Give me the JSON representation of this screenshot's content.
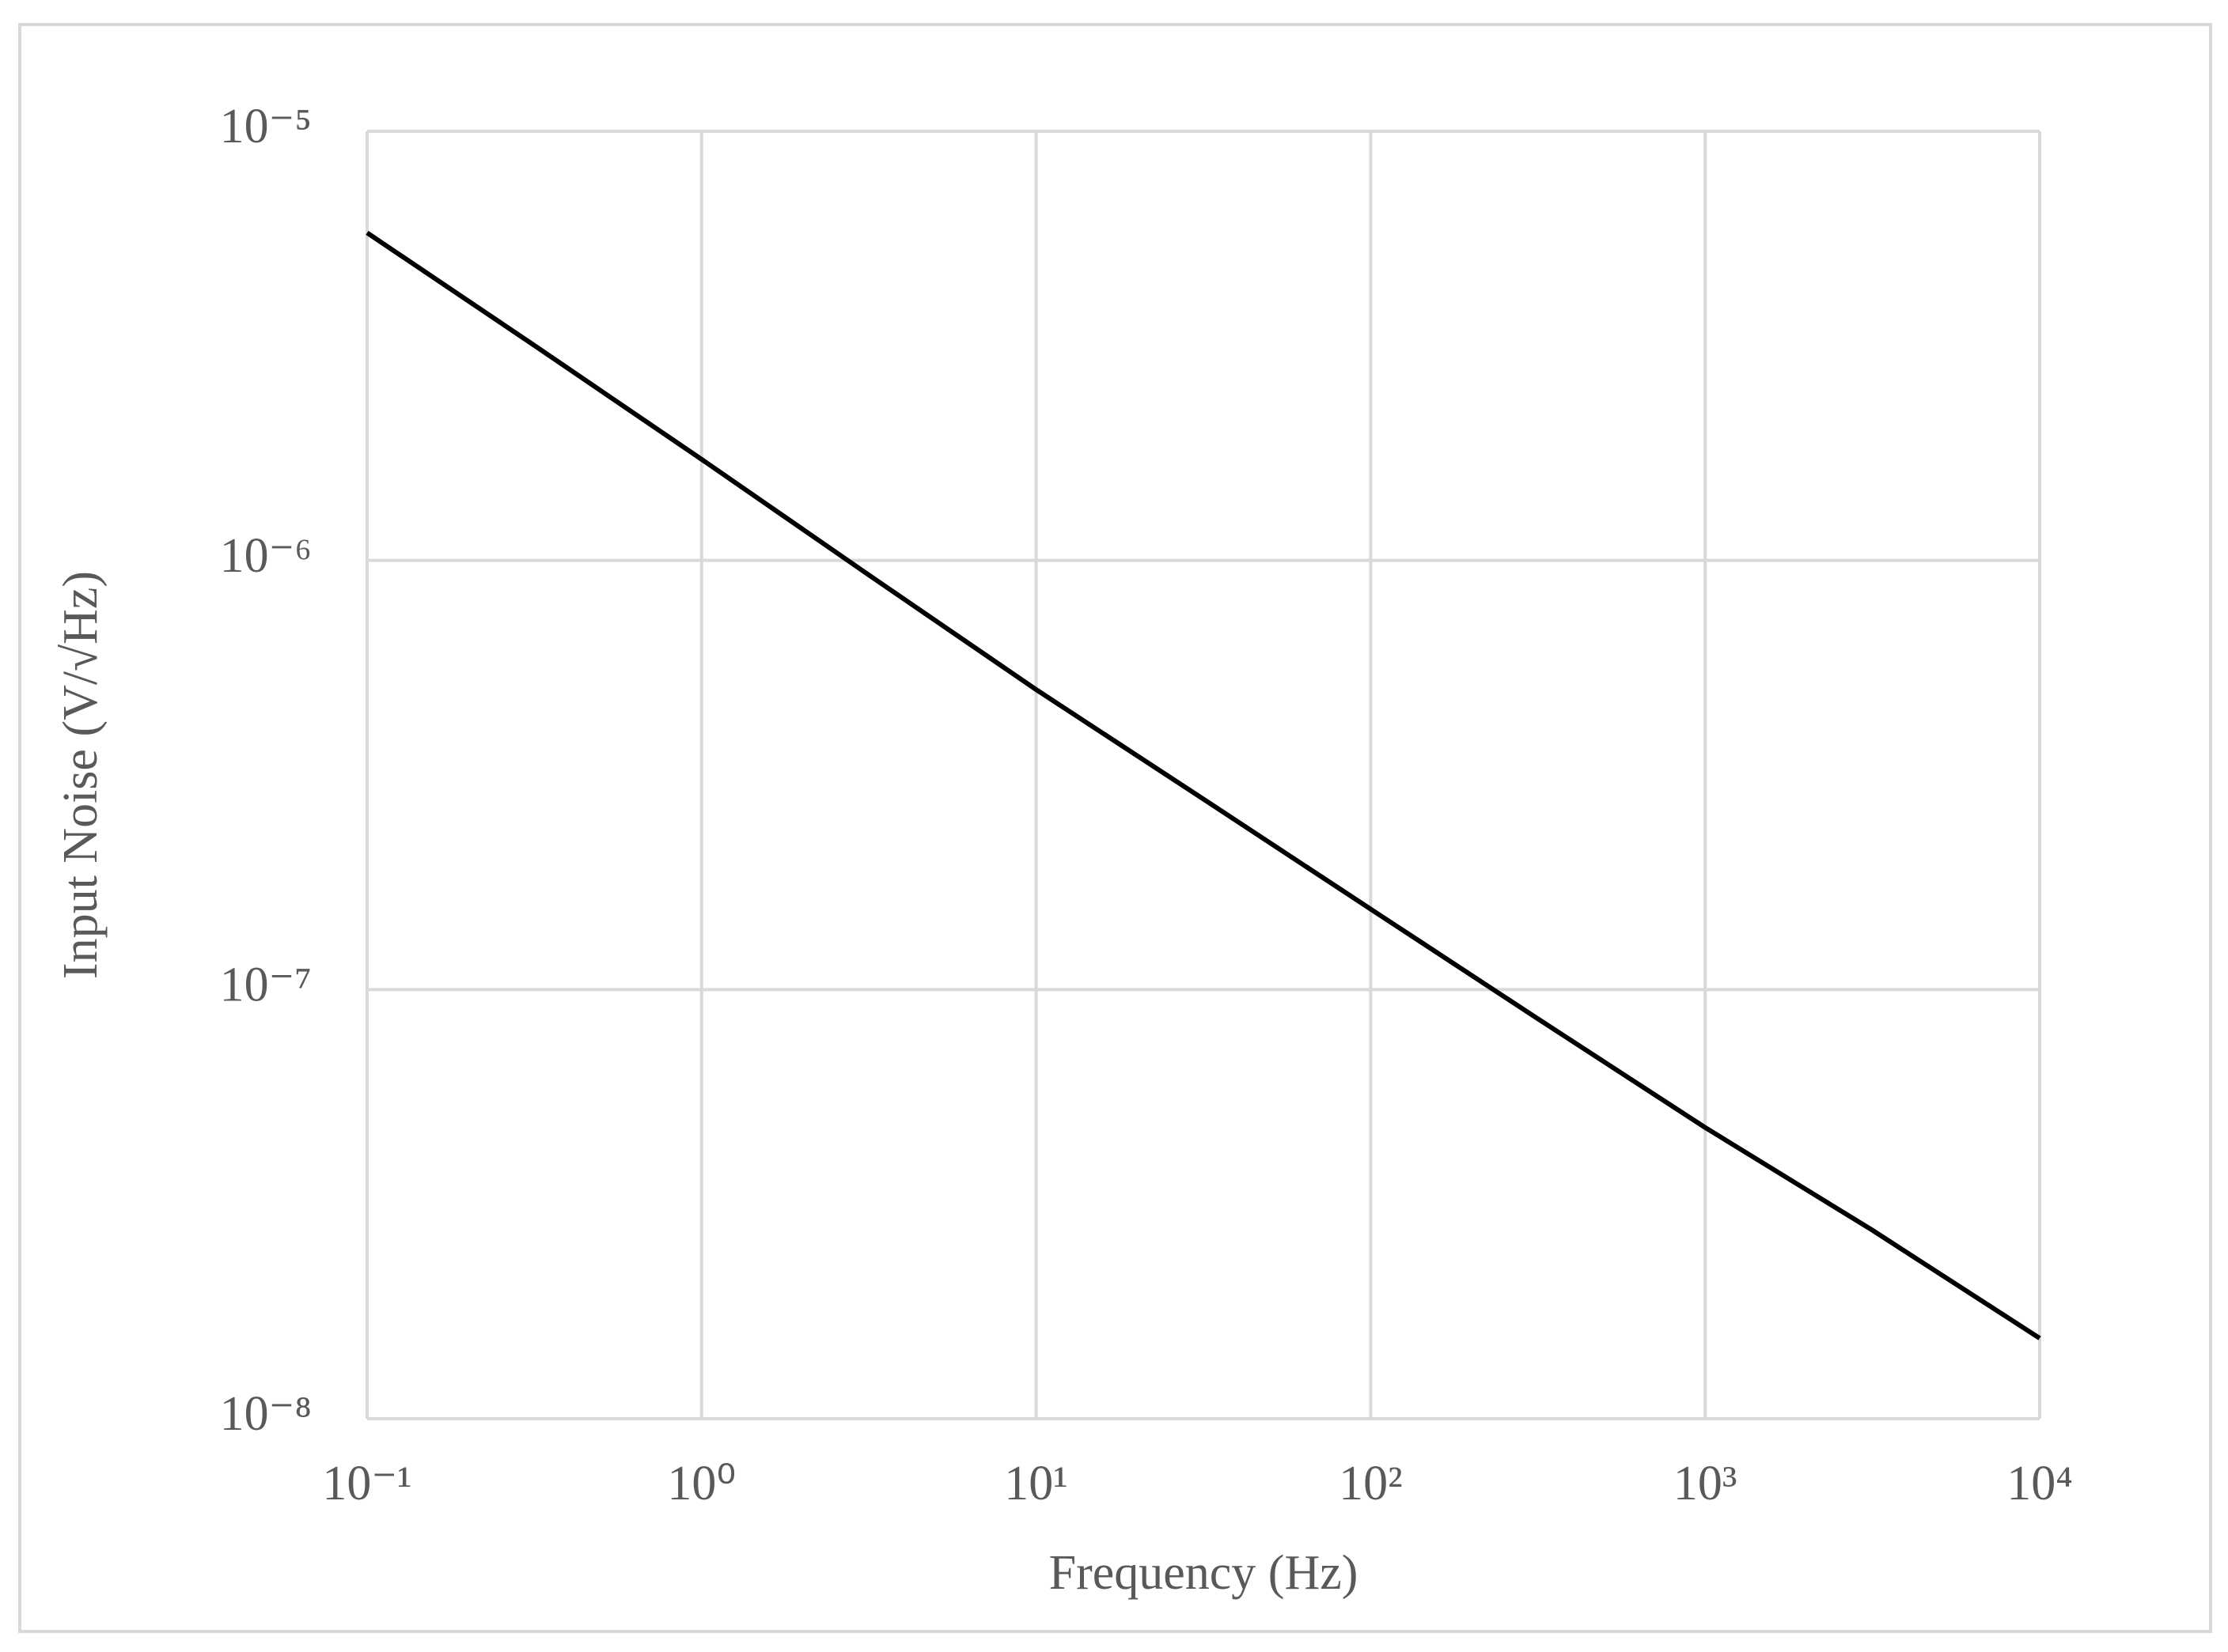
{
  "chart_data": {
    "type": "line",
    "x_label": "Frequency (Hz)",
    "y_label": "Input Noise (V/√Hz)",
    "x": [
      0.1,
      0.316,
      1,
      3.16,
      10,
      31.6,
      100,
      316,
      1000,
      3160,
      10000
    ],
    "series": [
      {
        "color": "#000000",
        "values": [
          5.8e-06,
          3.17e-06,
          1.72e-06,
          9.25e-07,
          5e-07,
          2.78e-07,
          1.54e-07,
          8.55e-08,
          4.77e-08,
          2.75e-08,
          1.54e-08
        ]
      }
    ],
    "x_log": true,
    "y_log": true,
    "xlim": [
      0.1,
      10000
    ],
    "ylim": [
      1e-08,
      1e-05
    ],
    "xticks": [
      {
        "value": 0.1,
        "label": "10⁻¹"
      },
      {
        "value": 1,
        "label": "10⁰"
      },
      {
        "value": 10,
        "label": "10¹"
      },
      {
        "value": 100,
        "label": "10²"
      },
      {
        "value": 1000,
        "label": "10³"
      },
      {
        "value": 10000,
        "label": "10⁴"
      }
    ],
    "yticks": [
      {
        "value": 1e-08,
        "label": "10⁻⁸"
      },
      {
        "value": 1e-07,
        "label": "10⁻⁷"
      },
      {
        "value": 1e-06,
        "label": "10⁻⁶"
      },
      {
        "value": 1e-05,
        "label": "10⁻⁵"
      }
    ],
    "grid": true
  }
}
